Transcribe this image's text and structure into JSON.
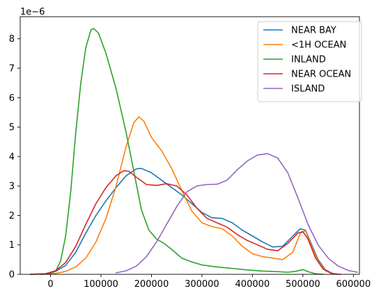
{
  "chart_data": {
    "type": "line",
    "title": "",
    "xlabel": "",
    "ylabel": "",
    "y_offset_label": "1e−6",
    "xlim": [
      -60000,
      612000
    ],
    "ylim": [
      0,
      8.75
    ],
    "y_scale_exponent": -6,
    "grid": false,
    "legend_position": "top-right",
    "x_ticks": [
      {
        "value": 0,
        "label": "0"
      },
      {
        "value": 100000,
        "label": "100000"
      },
      {
        "value": 200000,
        "label": "200000"
      },
      {
        "value": 300000,
        "label": "300000"
      },
      {
        "value": 400000,
        "label": "400000"
      },
      {
        "value": 500000,
        "label": "500000"
      },
      {
        "value": 600000,
        "label": "600000"
      }
    ],
    "y_ticks": [
      {
        "value": 0,
        "label": "0"
      },
      {
        "value": 1,
        "label": "1"
      },
      {
        "value": 2,
        "label": "2"
      },
      {
        "value": 3,
        "label": "3"
      },
      {
        "value": 4,
        "label": "4"
      },
      {
        "value": 5,
        "label": "5"
      },
      {
        "value": 6,
        "label": "6"
      },
      {
        "value": 7,
        "label": "7"
      },
      {
        "value": 8,
        "label": "8"
      }
    ],
    "series": [
      {
        "name": "NEAR BAY",
        "color": "#1f77b4",
        "points": [
          [
            -40000,
            0
          ],
          [
            -10000,
            0.02
          ],
          [
            10000,
            0.1
          ],
          [
            30000,
            0.3
          ],
          [
            50000,
            0.75
          ],
          [
            70000,
            1.4
          ],
          [
            90000,
            2.0
          ],
          [
            110000,
            2.5
          ],
          [
            130000,
            2.95
          ],
          [
            150000,
            3.35
          ],
          [
            170000,
            3.58
          ],
          [
            180000,
            3.6
          ],
          [
            200000,
            3.45
          ],
          [
            220000,
            3.2
          ],
          [
            240000,
            2.95
          ],
          [
            260000,
            2.7
          ],
          [
            280000,
            2.4
          ],
          [
            300000,
            2.1
          ],
          [
            320000,
            1.92
          ],
          [
            340000,
            1.9
          ],
          [
            360000,
            1.75
          ],
          [
            380000,
            1.5
          ],
          [
            400000,
            1.3
          ],
          [
            420000,
            1.1
          ],
          [
            440000,
            0.93
          ],
          [
            460000,
            0.95
          ],
          [
            480000,
            1.3
          ],
          [
            495000,
            1.55
          ],
          [
            505000,
            1.5
          ],
          [
            515000,
            1.1
          ],
          [
            530000,
            0.5
          ],
          [
            545000,
            0.15
          ],
          [
            560000,
            0.02
          ],
          [
            575000,
            0
          ]
        ]
      },
      {
        "name": "<1H OCEAN",
        "color": "#ff7f0e",
        "points": [
          [
            -40000,
            0
          ],
          [
            -10000,
            0.01
          ],
          [
            10000,
            0.03
          ],
          [
            30000,
            0.1
          ],
          [
            50000,
            0.25
          ],
          [
            70000,
            0.55
          ],
          [
            90000,
            1.1
          ],
          [
            110000,
            1.9
          ],
          [
            130000,
            3.0
          ],
          [
            150000,
            4.35
          ],
          [
            165000,
            5.15
          ],
          [
            175000,
            5.35
          ],
          [
            185000,
            5.2
          ],
          [
            200000,
            4.65
          ],
          [
            220000,
            4.2
          ],
          [
            240000,
            3.6
          ],
          [
            260000,
            2.85
          ],
          [
            280000,
            2.15
          ],
          [
            300000,
            1.75
          ],
          [
            320000,
            1.62
          ],
          [
            340000,
            1.55
          ],
          [
            360000,
            1.3
          ],
          [
            380000,
            0.95
          ],
          [
            400000,
            0.7
          ],
          [
            420000,
            0.6
          ],
          [
            440000,
            0.55
          ],
          [
            460000,
            0.5
          ],
          [
            480000,
            0.75
          ],
          [
            495000,
            1.4
          ],
          [
            505000,
            1.48
          ],
          [
            515000,
            1.05
          ],
          [
            530000,
            0.45
          ],
          [
            545000,
            0.12
          ],
          [
            560000,
            0.02
          ],
          [
            575000,
            0
          ]
        ]
      },
      {
        "name": "INLAND",
        "color": "#2ca02c",
        "points": [
          [
            -20000,
            0
          ],
          [
            -5000,
            0.01
          ],
          [
            10000,
            0.1
          ],
          [
            20000,
            0.45
          ],
          [
            30000,
            1.3
          ],
          [
            40000,
            2.8
          ],
          [
            50000,
            4.8
          ],
          [
            60000,
            6.5
          ],
          [
            70000,
            7.7
          ],
          [
            80000,
            8.3
          ],
          [
            85000,
            8.35
          ],
          [
            95000,
            8.2
          ],
          [
            110000,
            7.5
          ],
          [
            130000,
            6.3
          ],
          [
            150000,
            4.8
          ],
          [
            165000,
            3.5
          ],
          [
            180000,
            2.2
          ],
          [
            195000,
            1.5
          ],
          [
            210000,
            1.2
          ],
          [
            225000,
            1.05
          ],
          [
            240000,
            0.85
          ],
          [
            260000,
            0.55
          ],
          [
            280000,
            0.42
          ],
          [
            300000,
            0.32
          ],
          [
            330000,
            0.25
          ],
          [
            360000,
            0.2
          ],
          [
            390000,
            0.15
          ],
          [
            420000,
            0.11
          ],
          [
            450000,
            0.09
          ],
          [
            470000,
            0.07
          ],
          [
            485000,
            0.1
          ],
          [
            500000,
            0.16
          ],
          [
            512000,
            0.08
          ],
          [
            525000,
            0.02
          ],
          [
            540000,
            0
          ]
        ]
      },
      {
        "name": "NEAR OCEAN",
        "color": "#d62728",
        "points": [
          [
            -40000,
            0
          ],
          [
            -10000,
            0.02
          ],
          [
            10000,
            0.12
          ],
          [
            30000,
            0.4
          ],
          [
            50000,
            0.95
          ],
          [
            70000,
            1.7
          ],
          [
            90000,
            2.4
          ],
          [
            110000,
            2.95
          ],
          [
            130000,
            3.35
          ],
          [
            145000,
            3.52
          ],
          [
            155000,
            3.5
          ],
          [
            170000,
            3.3
          ],
          [
            190000,
            3.05
          ],
          [
            210000,
            3.02
          ],
          [
            230000,
            3.08
          ],
          [
            250000,
            3.0
          ],
          [
            270000,
            2.7
          ],
          [
            290000,
            2.25
          ],
          [
            310000,
            1.9
          ],
          [
            330000,
            1.75
          ],
          [
            350000,
            1.6
          ],
          [
            370000,
            1.35
          ],
          [
            390000,
            1.15
          ],
          [
            410000,
            1.0
          ],
          [
            430000,
            0.85
          ],
          [
            450000,
            0.8
          ],
          [
            470000,
            1.05
          ],
          [
            490000,
            1.4
          ],
          [
            500000,
            1.45
          ],
          [
            510000,
            1.2
          ],
          [
            525000,
            0.55
          ],
          [
            540000,
            0.18
          ],
          [
            555000,
            0.04
          ],
          [
            570000,
            0
          ]
        ]
      },
      {
        "name": "ISLAND",
        "color": "#9467bd",
        "points": [
          [
            130000,
            0.05
          ],
          [
            150000,
            0.12
          ],
          [
            170000,
            0.28
          ],
          [
            190000,
            0.6
          ],
          [
            210000,
            1.1
          ],
          [
            230000,
            1.7
          ],
          [
            250000,
            2.3
          ],
          [
            270000,
            2.8
          ],
          [
            290000,
            3.0
          ],
          [
            310000,
            3.05
          ],
          [
            330000,
            3.06
          ],
          [
            350000,
            3.2
          ],
          [
            370000,
            3.55
          ],
          [
            390000,
            3.85
          ],
          [
            410000,
            4.05
          ],
          [
            430000,
            4.1
          ],
          [
            450000,
            3.95
          ],
          [
            470000,
            3.45
          ],
          [
            490000,
            2.6
          ],
          [
            510000,
            1.7
          ],
          [
            530000,
            1.0
          ],
          [
            550000,
            0.55
          ],
          [
            570000,
            0.28
          ],
          [
            590000,
            0.13
          ],
          [
            608000,
            0.07
          ]
        ]
      }
    ]
  }
}
